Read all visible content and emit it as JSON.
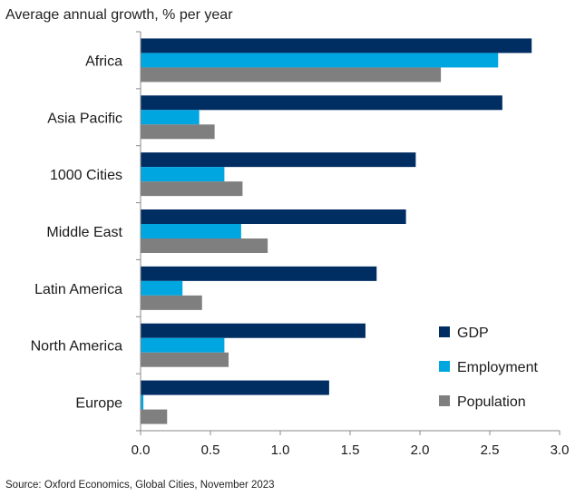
{
  "chart_data": {
    "type": "bar",
    "orientation": "horizontal",
    "title": "",
    "subtitle": "Average annual growth, % per year",
    "xlabel": "",
    "ylabel": "",
    "categories": [
      "Africa",
      "Asia Pacific",
      "1000 Cities",
      "Middle East",
      "Latin America",
      "North America",
      "Europe"
    ],
    "series": [
      {
        "name": "GDP",
        "color": "#002d62",
        "values": [
          2.8,
          2.59,
          1.97,
          1.9,
          1.69,
          1.61,
          1.35
        ]
      },
      {
        "name": "Employment",
        "color": "#00a6e0",
        "values": [
          2.56,
          0.42,
          0.6,
          0.72,
          0.3,
          0.6,
          0.02
        ]
      },
      {
        "name": "Population",
        "color": "#7f7f7f",
        "values": [
          2.15,
          0.53,
          0.73,
          0.91,
          0.44,
          0.63,
          0.19
        ]
      }
    ],
    "xlim": [
      0,
      3.0
    ],
    "xticks": [
      "0.0",
      "0.5",
      "1.0",
      "1.5",
      "2.0",
      "2.5",
      "3.0"
    ],
    "legend_position": "bottom-right",
    "grid": false,
    "source": "Source: Oxford Economics, Global Cities, November 2023"
  }
}
